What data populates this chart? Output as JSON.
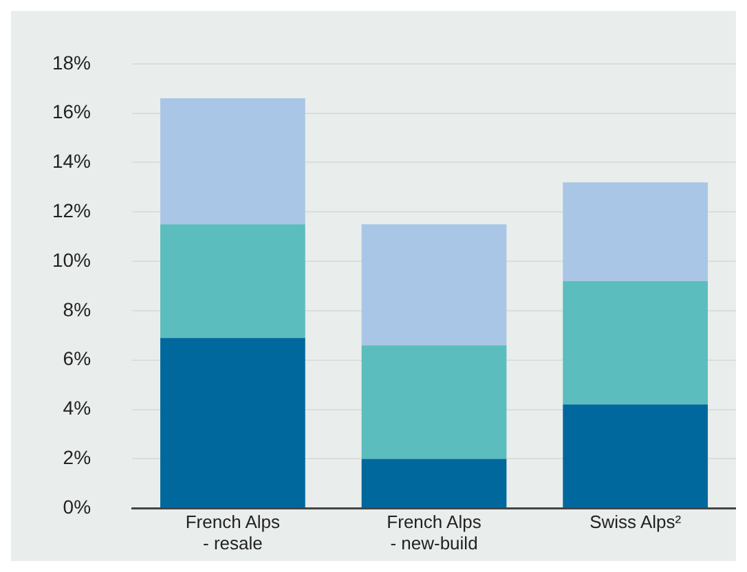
{
  "chart_data": {
    "type": "bar",
    "stacked": true,
    "categories": [
      "French Alps - resale",
      "French Alps - new-build",
      "Swiss Alps²"
    ],
    "series": [
      {
        "color": "#00689c",
        "values": [
          6.9,
          2.0,
          4.2
        ]
      },
      {
        "color": "#5bbdbd",
        "values": [
          4.6,
          4.6,
          5.0
        ]
      },
      {
        "color": "#a9c6e6",
        "values": [
          5.1,
          4.9,
          4.0
        ]
      }
    ],
    "ylim": [
      0,
      18
    ],
    "yticks": [
      {
        "value": 0,
        "label": "0%"
      },
      {
        "value": 2,
        "label": "2%"
      },
      {
        "value": 4,
        "label": "4%"
      },
      {
        "value": 6,
        "label": "6%"
      },
      {
        "value": 8,
        "label": "8%"
      },
      {
        "value": 10,
        "label": "10%"
      },
      {
        "value": 12,
        "label": "12%"
      },
      {
        "value": 14,
        "label": "14%"
      },
      {
        "value": 16,
        "label": "16%"
      },
      {
        "value": 18,
        "label": "18%"
      }
    ],
    "grid": "y",
    "legend": false
  }
}
